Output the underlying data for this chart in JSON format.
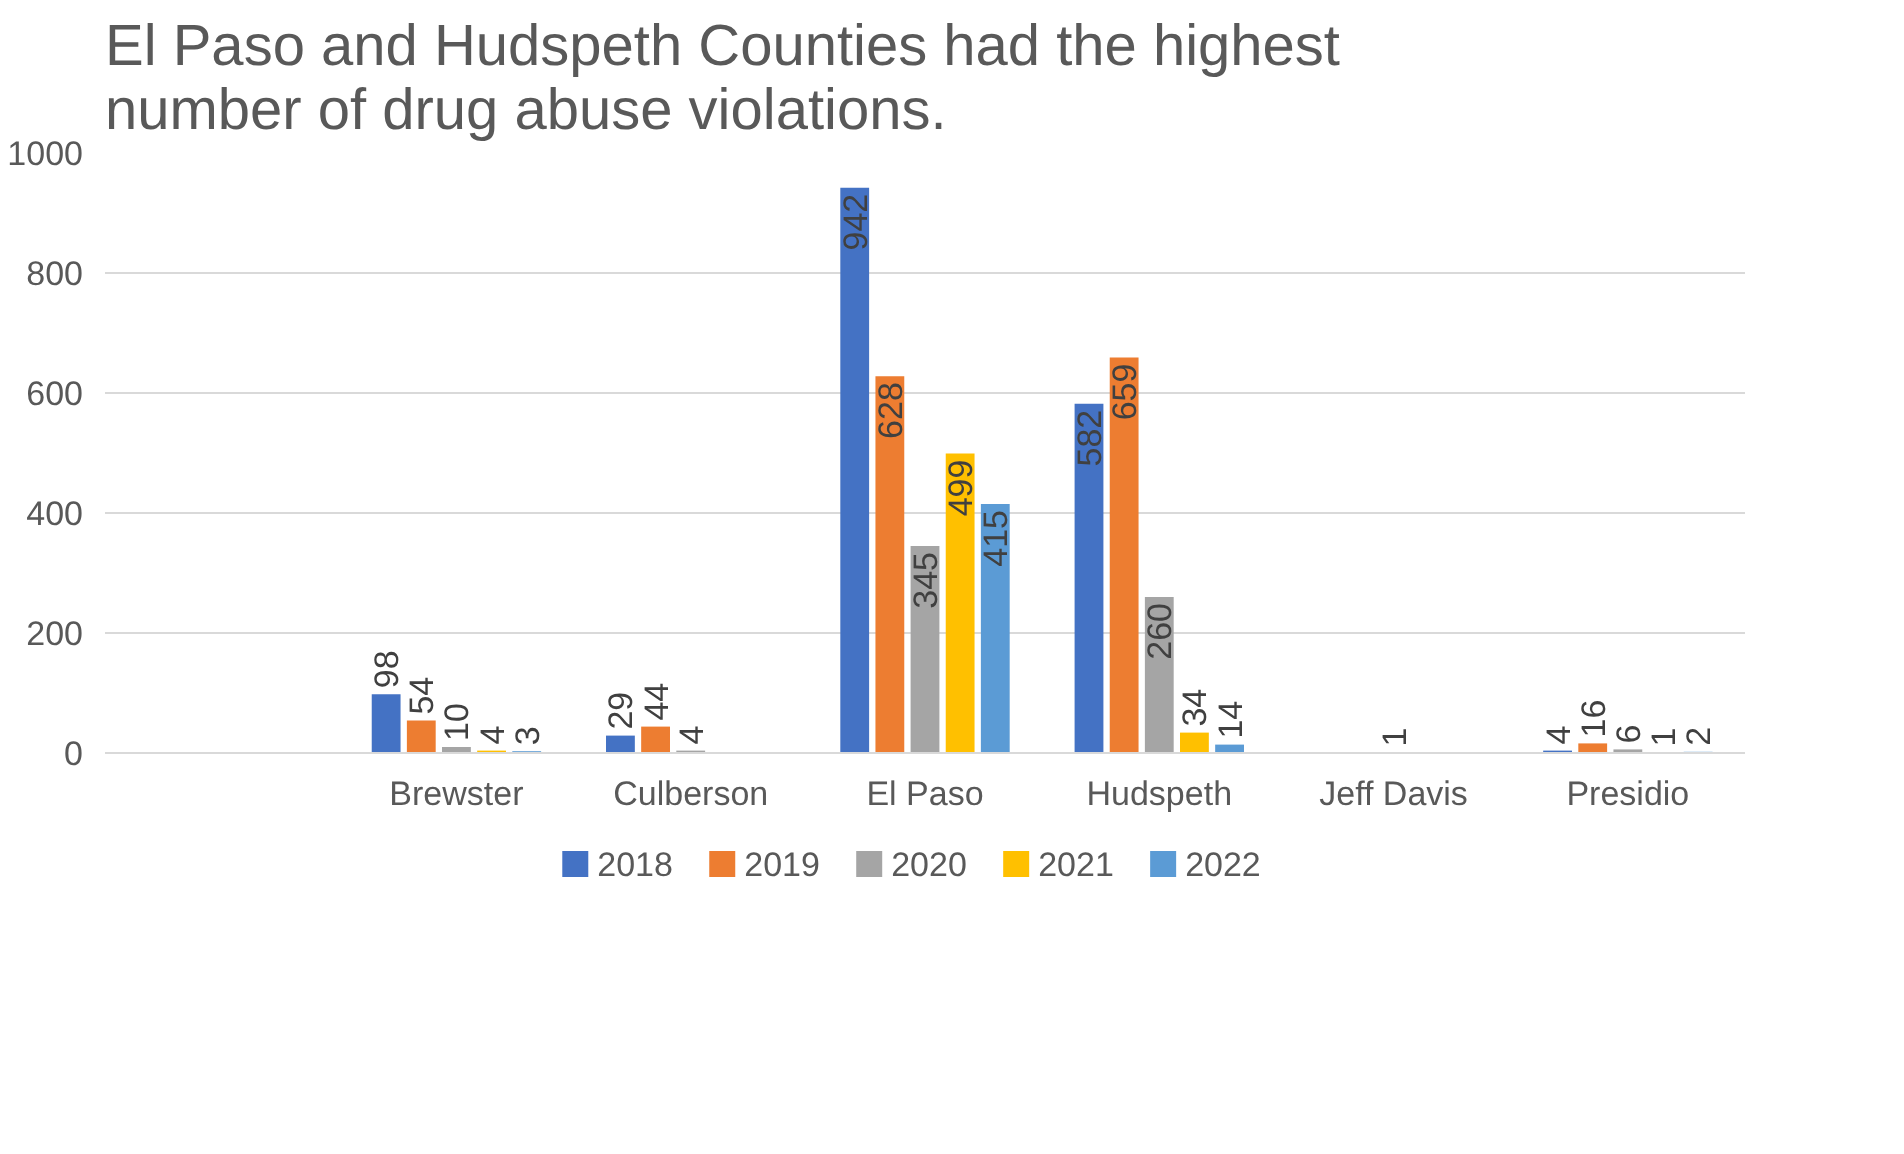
{
  "chart_data": {
    "type": "bar",
    "title": "El Paso and Hudspeth Counties had the highest\nnumber of drug abuse violations.",
    "categories": [
      null,
      "Brewster",
      "Culberson",
      "El Paso",
      "Hudspeth",
      "Jeff Davis",
      "Presidio"
    ],
    "series": [
      {
        "name": "2018",
        "color": "#4472c4",
        "values": [
          null,
          98,
          29,
          942,
          582,
          null,
          4
        ]
      },
      {
        "name": "2019",
        "color": "#ed7d31",
        "values": [
          null,
          54,
          44,
          628,
          659,
          null,
          16
        ]
      },
      {
        "name": "2020",
        "color": "#a5a5a5",
        "values": [
          null,
          10,
          4,
          345,
          260,
          1,
          6
        ]
      },
      {
        "name": "2021",
        "color": "#ffc000",
        "values": [
          null,
          4,
          null,
          499,
          34,
          null,
          1
        ]
      },
      {
        "name": "2022",
        "color": "#5b9bd5",
        "values": [
          null,
          3,
          null,
          415,
          14,
          null,
          2
        ]
      }
    ],
    "ylim": [
      0,
      1000
    ],
    "yticks": [
      0,
      200,
      400,
      600,
      800,
      1000
    ],
    "grid": "y",
    "legend": "bottom",
    "data_labels": true
  }
}
